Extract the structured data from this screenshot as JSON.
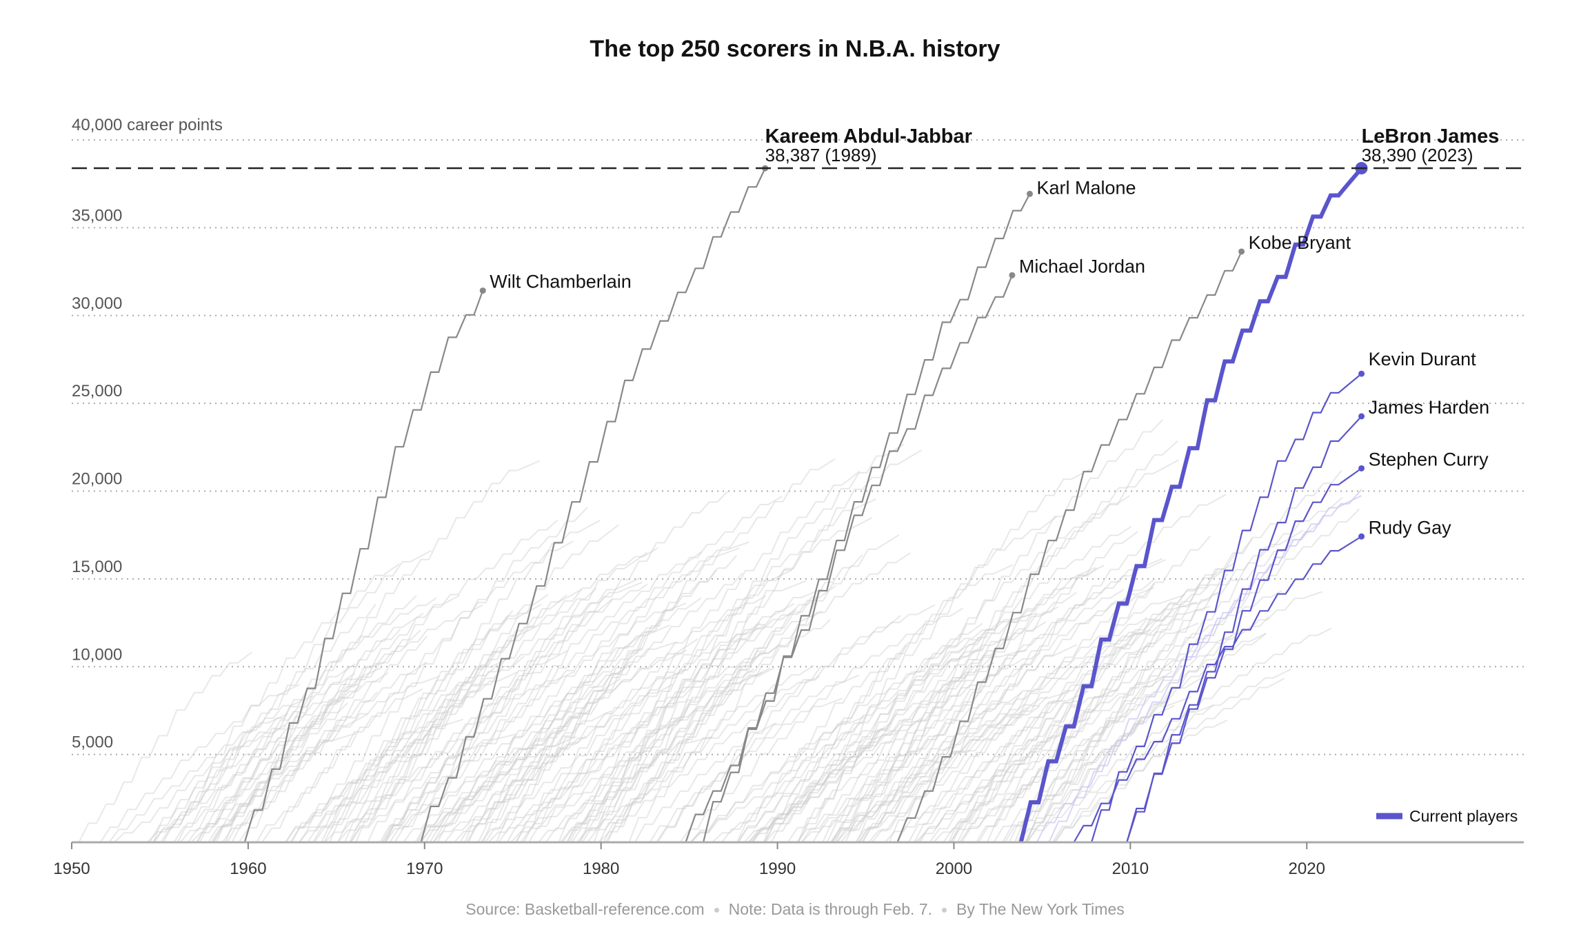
{
  "chart_data": {
    "type": "line",
    "title": "The top 250 scorers in N.B.A. history",
    "ylabel_top": "40,000 career points",
    "y_ticks": [
      "5,000",
      "10,000",
      "15,000",
      "20,000",
      "25,000",
      "30,000",
      "35,000"
    ],
    "y_tick_values": [
      5000,
      10000,
      15000,
      20000,
      25000,
      30000,
      35000,
      40000
    ],
    "x_ticks": [
      "1950",
      "1960",
      "1970",
      "1980",
      "1990",
      "2000",
      "2010",
      "2020"
    ],
    "x_tick_values": [
      1950,
      1960,
      1970,
      1980,
      1990,
      2000,
      2010,
      2020
    ],
    "xlim": [
      1950,
      2032.3
    ],
    "ylim": [
      0,
      40000
    ],
    "grid": "horizontal dotted",
    "record_line": 38390,
    "legend": {
      "label": "Current players",
      "placement": "bottom-right"
    },
    "colors": {
      "current": "#5a55cc",
      "current_faint": "#c9c6f0",
      "historic": "#cccccc",
      "highlight": "#888888",
      "record": "#222222"
    },
    "highlighted_series": [
      {
        "name": "Kareem Abdul-Jabbar",
        "detail": "38,387 (1989)",
        "start": 1969.8,
        "end": 1989.3,
        "final": 38387,
        "current": false
      },
      {
        "name": "LeBron James",
        "detail": "38,390 (2023)",
        "start": 2003.8,
        "end": 2023.1,
        "final": 38390,
        "current": true
      },
      {
        "name": "Karl Malone",
        "start": 1985.8,
        "end": 2004.3,
        "final": 36928,
        "current": false
      },
      {
        "name": "Michael Jordan",
        "start": 1984.8,
        "end": 2003.3,
        "final": 32292,
        "current": false
      },
      {
        "name": "Kobe Bryant",
        "start": 1996.8,
        "end": 2016.3,
        "final": 33643,
        "current": false
      },
      {
        "name": "Wilt Chamberlain",
        "start": 1959.8,
        "end": 1973.3,
        "final": 31419,
        "current": false
      },
      {
        "name": "Kevin Durant",
        "start": 2007.8,
        "end": 2023.1,
        "final": 26684,
        "current": true
      },
      {
        "name": "James Harden",
        "start": 2009.8,
        "end": 2023.1,
        "final": 24259,
        "current": true
      },
      {
        "name": "Stephen Curry",
        "start": 2009.8,
        "end": 2023.1,
        "final": 21296,
        "current": true
      },
      {
        "name": "Rudy Gay",
        "start": 2006.8,
        "end": 2023.1,
        "final": 17417,
        "current": true
      }
    ]
  },
  "source": {
    "source_text": "Source: Basketball-reference.com",
    "note_text": "Note: Data is through Feb. 7.",
    "byline": "By The New York Times"
  }
}
